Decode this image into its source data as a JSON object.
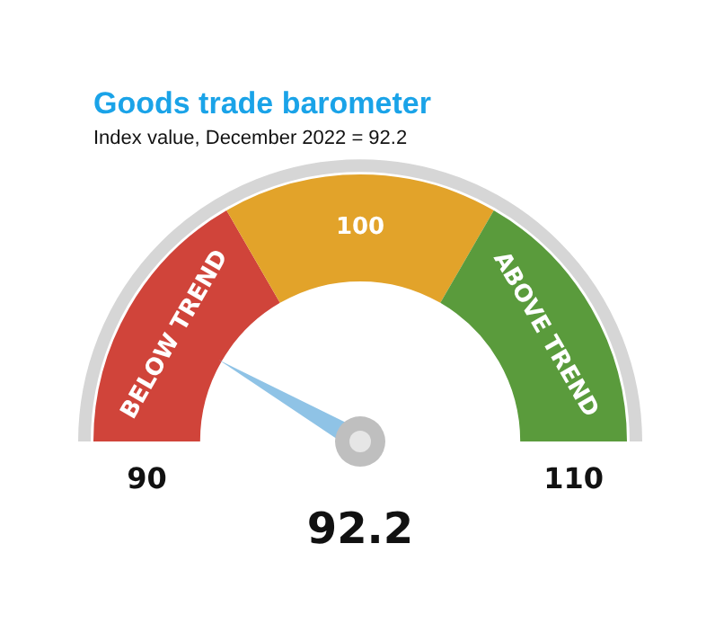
{
  "chart_data": {
    "type": "donut",
    "title": "Goods trade barometer",
    "subtitle": "Index value, December 2022 = 92.2",
    "categories": [
      "BELOW TREND",
      "100",
      "ABOVE TREND"
    ],
    "values": [
      33.3,
      33.4,
      33.3
    ],
    "colors": [
      "#d0443a",
      "#e2a32a",
      "#5a9b3c"
    ],
    "needle": "BELOW TREND",
    "annotations": [
      "90",
      "110",
      "92.2"
    ],
    "legend": false
  }
}
